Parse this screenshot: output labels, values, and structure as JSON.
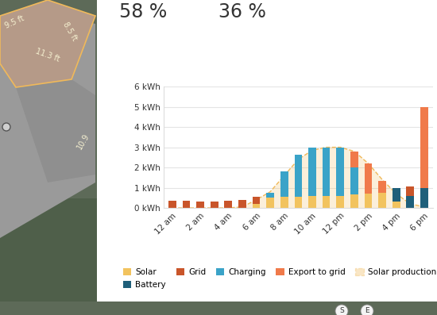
{
  "chart_data": {
    "type": "bar",
    "stacked": true,
    "grid": true,
    "legend": "lower center",
    "categories": [
      "12 am",
      null,
      "2 am",
      null,
      "4 am",
      null,
      "6 am",
      null,
      "8 am",
      null,
      "10 am",
      null,
      "12 pm",
      null,
      "2 pm",
      null,
      "4 pm",
      null,
      "6 pm"
    ],
    "ylim": [
      0,
      6
    ],
    "yticks": [
      {
        "value": 0,
        "label": "0 kWh"
      },
      {
        "value": 1,
        "label": "1 kWh"
      },
      {
        "value": 2,
        "label": "2 kWh"
      },
      {
        "value": 3,
        "label": "3 kWh"
      },
      {
        "value": 4,
        "label": "4 kWh"
      },
      {
        "value": 5,
        "label": "5 kWh"
      },
      {
        "value": 6,
        "label": "6 kWh"
      }
    ],
    "series": [
      {
        "name": "Solar",
        "color": "#f2c35e",
        "values": [
          0,
          0,
          0,
          0,
          0,
          0,
          0.2,
          0.5,
          0.55,
          0.55,
          0.6,
          0.6,
          0.6,
          0.65,
          0.7,
          0.75,
          0.3,
          0,
          0
        ]
      },
      {
        "name": "Battery",
        "color": "#1f5f7a",
        "values": [
          0,
          0,
          0,
          0,
          0,
          0,
          0,
          0,
          0,
          0,
          0,
          0,
          0,
          0,
          0,
          0,
          0.7,
          0.6,
          1.0
        ]
      },
      {
        "name": "Grid",
        "color": "#c9552a",
        "values": [
          0.35,
          0.35,
          0.3,
          0.3,
          0.35,
          0.4,
          0.35,
          0,
          0,
          0,
          0,
          0,
          0,
          0,
          0,
          0,
          0,
          0.45,
          0
        ]
      },
      {
        "name": "Charging",
        "color": "#3aa3c8",
        "values": [
          0,
          0,
          0,
          0,
          0,
          0,
          0,
          0.25,
          1.25,
          2.1,
          2.4,
          2.4,
          2.4,
          1.35,
          0,
          0,
          0,
          0,
          0
        ]
      },
      {
        "name": "Export to grid",
        "color": "#f07a4a",
        "values": [
          0,
          0,
          0,
          0,
          0,
          0,
          0,
          0,
          0,
          0,
          0,
          0,
          0,
          0.8,
          1.5,
          0.6,
          0,
          0,
          4.0
        ]
      },
      {
        "name": "Solar production",
        "type": "area",
        "line_style": "dashed",
        "color": "#f0b95a",
        "values": [
          0,
          0,
          0,
          0,
          0,
          0.05,
          0.4,
          0.8,
          1.6,
          2.4,
          2.85,
          3.0,
          3.0,
          2.8,
          2.2,
          1.4,
          0.7,
          0.2,
          0.05
        ]
      }
    ]
  },
  "stats": [
    "58 %",
    "36 %"
  ],
  "roof_labels": [
    "9.5 ft",
    "8.5 ft",
    "11.3 ft",
    "10.9"
  ],
  "compass": [
    "S",
    "E"
  ]
}
